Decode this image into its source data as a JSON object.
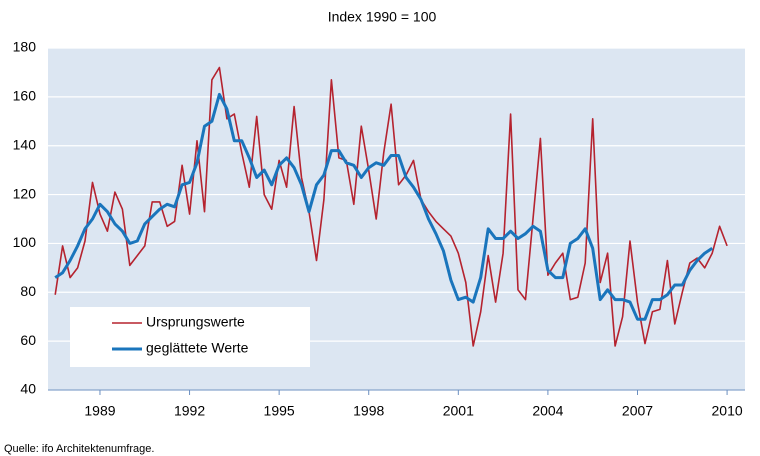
{
  "chart_data": {
    "type": "line",
    "title": "Index 1990 = 100",
    "source": "Quelle: ifo Architektenumfrage.",
    "x": [
      1987.5,
      1987.75,
      1988,
      1988.25,
      1988.5,
      1988.75,
      1989,
      1989.25,
      1989.5,
      1989.75,
      1990,
      1990.25,
      1990.5,
      1990.75,
      1991,
      1991.25,
      1991.5,
      1991.75,
      1992,
      1992.25,
      1992.5,
      1992.75,
      1993,
      1993.25,
      1993.5,
      1993.75,
      1994,
      1994.25,
      1994.5,
      1994.75,
      1995,
      1995.25,
      1995.5,
      1995.75,
      1996,
      1996.25,
      1996.5,
      1996.75,
      1997,
      1997.25,
      1997.5,
      1997.75,
      1998,
      1998.25,
      1998.5,
      1998.75,
      1999,
      1999.25,
      1999.5,
      1999.75,
      2000,
      2000.25,
      2000.5,
      2000.75,
      2001,
      2001.25,
      2001.5,
      2001.75,
      2002,
      2002.25,
      2002.5,
      2002.75,
      2003,
      2003.25,
      2003.5,
      2003.75,
      2004,
      2004.25,
      2004.5,
      2004.75,
      2005,
      2005.25,
      2005.5,
      2005.75,
      2006,
      2006.25,
      2006.5,
      2006.75,
      2007,
      2007.25,
      2007.5,
      2007.75,
      2008,
      2008.25,
      2008.5,
      2008.75,
      2009,
      2009.25,
      2009.5,
      2009.75,
      2010
    ],
    "series": [
      {
        "name": "Ursprungswerte",
        "color": "#b5232f",
        "width": 1.6,
        "values": [
          79,
          99,
          86,
          90,
          101,
          125,
          112,
          105,
          121,
          114,
          91,
          95,
          99,
          117,
          117,
          107,
          109,
          132,
          112,
          142,
          113,
          167,
          172,
          151,
          153,
          137,
          123,
          152,
          120,
          114,
          134,
          123,
          156,
          127,
          113,
          93,
          118,
          167,
          135,
          134,
          116,
          148,
          130,
          110,
          137,
          157,
          124,
          128,
          134,
          118,
          113,
          109,
          106,
          103,
          96,
          84,
          58,
          72,
          95,
          76,
          96,
          153,
          81,
          77,
          110,
          143,
          87,
          92,
          96,
          77,
          78,
          92,
          151,
          84,
          96,
          58,
          70,
          101,
          76,
          59,
          72,
          73,
          93,
          67,
          80,
          92,
          94,
          90,
          96,
          107,
          99
        ]
      },
      {
        "name": "geglättete Werte",
        "color": "#1a75bc",
        "width": 3,
        "values": [
          86,
          88,
          93,
          99,
          106,
          110,
          116,
          113,
          108,
          105,
          100,
          101,
          108,
          111,
          114,
          116,
          115,
          124,
          125,
          133,
          148,
          150,
          161,
          155,
          142,
          142,
          135,
          127,
          130,
          124,
          132,
          135,
          131,
          124,
          113,
          124,
          128,
          138,
          138,
          133,
          132,
          127,
          131,
          133,
          132,
          136,
          136,
          127,
          123,
          118,
          110,
          104,
          97,
          85,
          77,
          78,
          76,
          86,
          106,
          102,
          102,
          105,
          102,
          104,
          107,
          105,
          89,
          86,
          86,
          100,
          102,
          106,
          98,
          77,
          81,
          77,
          77,
          76,
          69,
          69,
          77,
          77,
          79,
          83,
          83,
          89,
          93,
          96,
          98,
          null,
          null
        ]
      }
    ],
    "xlim": [
      1987.26,
      2010.6
    ],
    "xticks": [
      1989,
      1992,
      1995,
      1998,
      2001,
      2004,
      2007,
      2010
    ],
    "ylim": [
      40,
      180
    ],
    "yticks": [
      40,
      60,
      80,
      100,
      120,
      140,
      160,
      180
    ],
    "grid": true,
    "legend": "lower left"
  }
}
